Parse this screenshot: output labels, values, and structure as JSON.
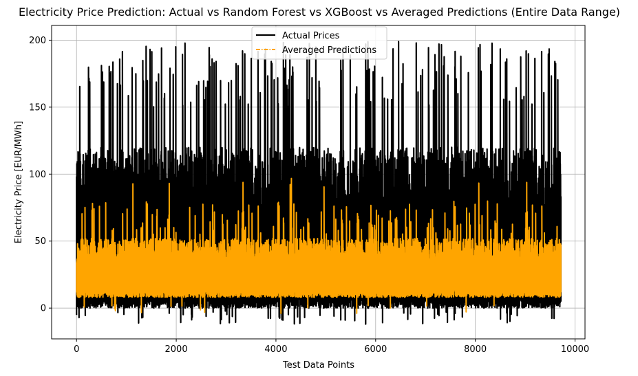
{
  "chart_data": {
    "type": "line",
    "title": "Electricity Price Prediction: Actual vs Random Forest vs XGBoost vs Averaged Predictions (Entire Data Range)",
    "xlabel": "Test Data Points",
    "ylabel": "Electricity Price [EUR/MWh]",
    "xlim": [
      -500,
      10200
    ],
    "ylim": [
      -23,
      211
    ],
    "xticks": [
      0,
      2000,
      4000,
      6000,
      8000,
      10000
    ],
    "xtick_labels": [
      "0",
      "2000",
      "4000",
      "6000",
      "8000",
      "10000"
    ],
    "yticks": [
      0,
      50,
      100,
      150,
      200
    ],
    "ytick_labels": [
      "0",
      "50",
      "100",
      "150",
      "200"
    ],
    "grid": true,
    "legend_position": "top-center",
    "n_points": 9720,
    "series": [
      {
        "name": "Actual Prices",
        "color": "#000000",
        "linestyle": "solid",
        "typical_range": [
          0,
          120
        ],
        "max": 200,
        "min": -12
      },
      {
        "name": "Averaged Predictions",
        "color": "#ffa500",
        "linestyle": "dashdot",
        "typical_range": [
          8,
          50
        ],
        "max": 97,
        "min": -4
      }
    ]
  }
}
